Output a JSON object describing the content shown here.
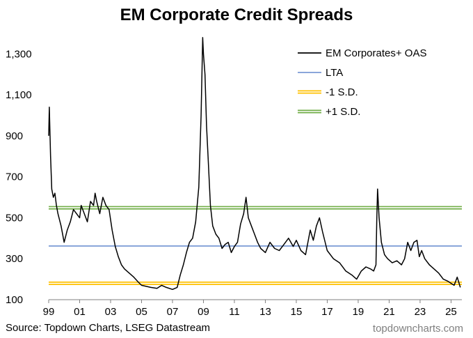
{
  "chart_data": {
    "type": "line",
    "title": "EM Corporate Credit Spreads",
    "xlabel": "",
    "ylabel": "",
    "xlim": [
      1999.0,
      2025.7
    ],
    "ylim": [
      100,
      1400
    ],
    "yticks": [
      100,
      300,
      500,
      700,
      900,
      1100,
      1300
    ],
    "ytick_labels": [
      "100",
      "300",
      "500",
      "700",
      "900",
      "1,100",
      "1,300"
    ],
    "xticks": [
      1999,
      2001,
      2003,
      2005,
      2007,
      2009,
      2011,
      2013,
      2015,
      2017,
      2019,
      2021,
      2023,
      2025
    ],
    "xtick_labels": [
      "99",
      "01",
      "03",
      "05",
      "07",
      "09",
      "11",
      "13",
      "15",
      "17",
      "19",
      "21",
      "23",
      "25"
    ],
    "legend_position": "top-right",
    "series": [
      {
        "name": "EM Corporates+ OAS",
        "color": "#000000",
        "x": [
          1999.0,
          1999.04,
          1999.12,
          1999.2,
          1999.3,
          1999.4,
          1999.5,
          1999.6,
          1999.8,
          2000.0,
          2000.2,
          2000.4,
          2000.6,
          2000.8,
          2001.0,
          2001.1,
          2001.3,
          2001.5,
          2001.7,
          2001.9,
          2002.0,
          2002.1,
          2002.3,
          2002.5,
          2002.7,
          2002.9,
          2003.1,
          2003.3,
          2003.5,
          2003.7,
          2003.9,
          2004.2,
          2004.5,
          2004.8,
          2005.0,
          2005.3,
          2005.6,
          2006.0,
          2006.3,
          2006.6,
          2007.0,
          2007.3,
          2007.5,
          2007.7,
          2007.9,
          2008.1,
          2008.3,
          2008.5,
          2008.7,
          2008.85,
          2008.95,
          2009.0,
          2009.1,
          2009.2,
          2009.3,
          2009.45,
          2009.6,
          2009.8,
          2010.0,
          2010.2,
          2010.4,
          2010.6,
          2010.8,
          2011.0,
          2011.2,
          2011.4,
          2011.6,
          2011.75,
          2011.9,
          2012.1,
          2012.3,
          2012.5,
          2012.7,
          2013.0,
          2013.3,
          2013.6,
          2013.9,
          2014.2,
          2014.5,
          2014.8,
          2015.0,
          2015.3,
          2015.6,
          2015.9,
          2016.1,
          2016.3,
          2016.5,
          2016.7,
          2017.0,
          2017.4,
          2017.8,
          2018.2,
          2018.6,
          2018.9,
          2019.2,
          2019.5,
          2019.8,
          2020.0,
          2020.15,
          2020.2,
          2020.25,
          2020.35,
          2020.5,
          2020.7,
          2020.9,
          2021.2,
          2021.5,
          2021.8,
          2022.0,
          2022.2,
          2022.4,
          2022.6,
          2022.8,
          2022.95,
          2023.1,
          2023.3,
          2023.6,
          2023.9,
          2024.2,
          2024.5,
          2024.8,
          2025.0,
          2025.2,
          2025.4,
          2025.6
        ],
        "values": [
          900,
          1040,
          800,
          640,
          600,
          620,
          560,
          520,
          460,
          380,
          440,
          480,
          540,
          520,
          500,
          560,
          520,
          480,
          580,
          560,
          620,
          580,
          520,
          600,
          560,
          540,
          440,
          360,
          310,
          270,
          250,
          230,
          210,
          185,
          170,
          165,
          160,
          155,
          170,
          160,
          150,
          160,
          220,
          270,
          330,
          380,
          400,
          480,
          650,
          1000,
          1380,
          1300,
          1200,
          950,
          800,
          560,
          460,
          420,
          400,
          350,
          370,
          380,
          330,
          360,
          380,
          470,
          520,
          600,
          500,
          460,
          420,
          380,
          350,
          330,
          380,
          350,
          340,
          370,
          400,
          360,
          390,
          340,
          320,
          440,
          390,
          460,
          500,
          430,
          340,
          300,
          280,
          240,
          220,
          200,
          240,
          260,
          250,
          240,
          270,
          480,
          640,
          500,
          380,
          320,
          300,
          280,
          290,
          270,
          300,
          380,
          340,
          380,
          390,
          310,
          340,
          300,
          270,
          250,
          230,
          200,
          190,
          180,
          170,
          210,
          160
        ]
      },
      {
        "name": "LTA",
        "color": "#4472c4",
        "x": [
          1999.0,
          2025.7
        ],
        "values": [
          362,
          362
        ]
      },
      {
        "name": "-1 S.D.",
        "color": "#ffc000",
        "x": [
          1999.0,
          2025.7
        ],
        "values": [
          180,
          180
        ]
      },
      {
        "name": "+1 S.D.",
        "color": "#70ad47",
        "x": [
          1999.0,
          2025.7
        ],
        "values": [
          549,
          549
        ]
      }
    ]
  },
  "footer": {
    "source": "Source: Topdown Charts, LSEG Datastream",
    "brand": "topdowncharts.com"
  }
}
